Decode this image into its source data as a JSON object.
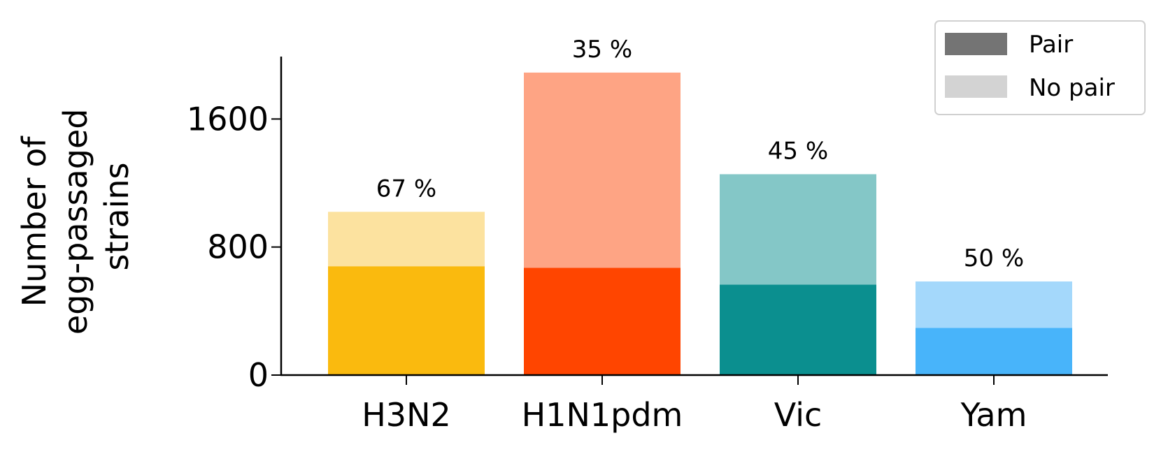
{
  "chart_data": {
    "type": "bar",
    "stacked": true,
    "categories": [
      "H3N2",
      "H1N1pdm",
      "Vic",
      "Yam"
    ],
    "series": [
      {
        "name": "Pair",
        "values": [
          680,
          670,
          565,
          295
        ]
      },
      {
        "name": "No pair",
        "values": [
          340,
          1220,
          690,
          290
        ]
      }
    ],
    "totals": [
      1020,
      1890,
      1255,
      585
    ],
    "percent_labels": [
      "67 %",
      "35 %",
      "45 %",
      "50 %"
    ],
    "colors": {
      "pair": [
        "#FABA0E",
        "#FF4500",
        "#0B8F8F",
        "#48B4FA"
      ],
      "no_pair": [
        "#FCE29F",
        "#FEA484",
        "#84C7C7",
        "#A4D8FB"
      ],
      "legend_pair": "#747474",
      "legend_no_pair": "#D3D3D3"
    },
    "title": "",
    "xlabel": "",
    "ylabel": "Number of egg-passaged strains",
    "ylabel_lines": [
      "Number of",
      "egg-passaged",
      "strains"
    ],
    "ylim": [
      0,
      1990
    ],
    "yticks": [
      0,
      800,
      1600
    ],
    "ytick_labels": [
      "0",
      "800",
      "1600"
    ],
    "legend": {
      "position": "top-right",
      "entries": [
        "Pair",
        "No pair"
      ]
    },
    "grid": false
  }
}
